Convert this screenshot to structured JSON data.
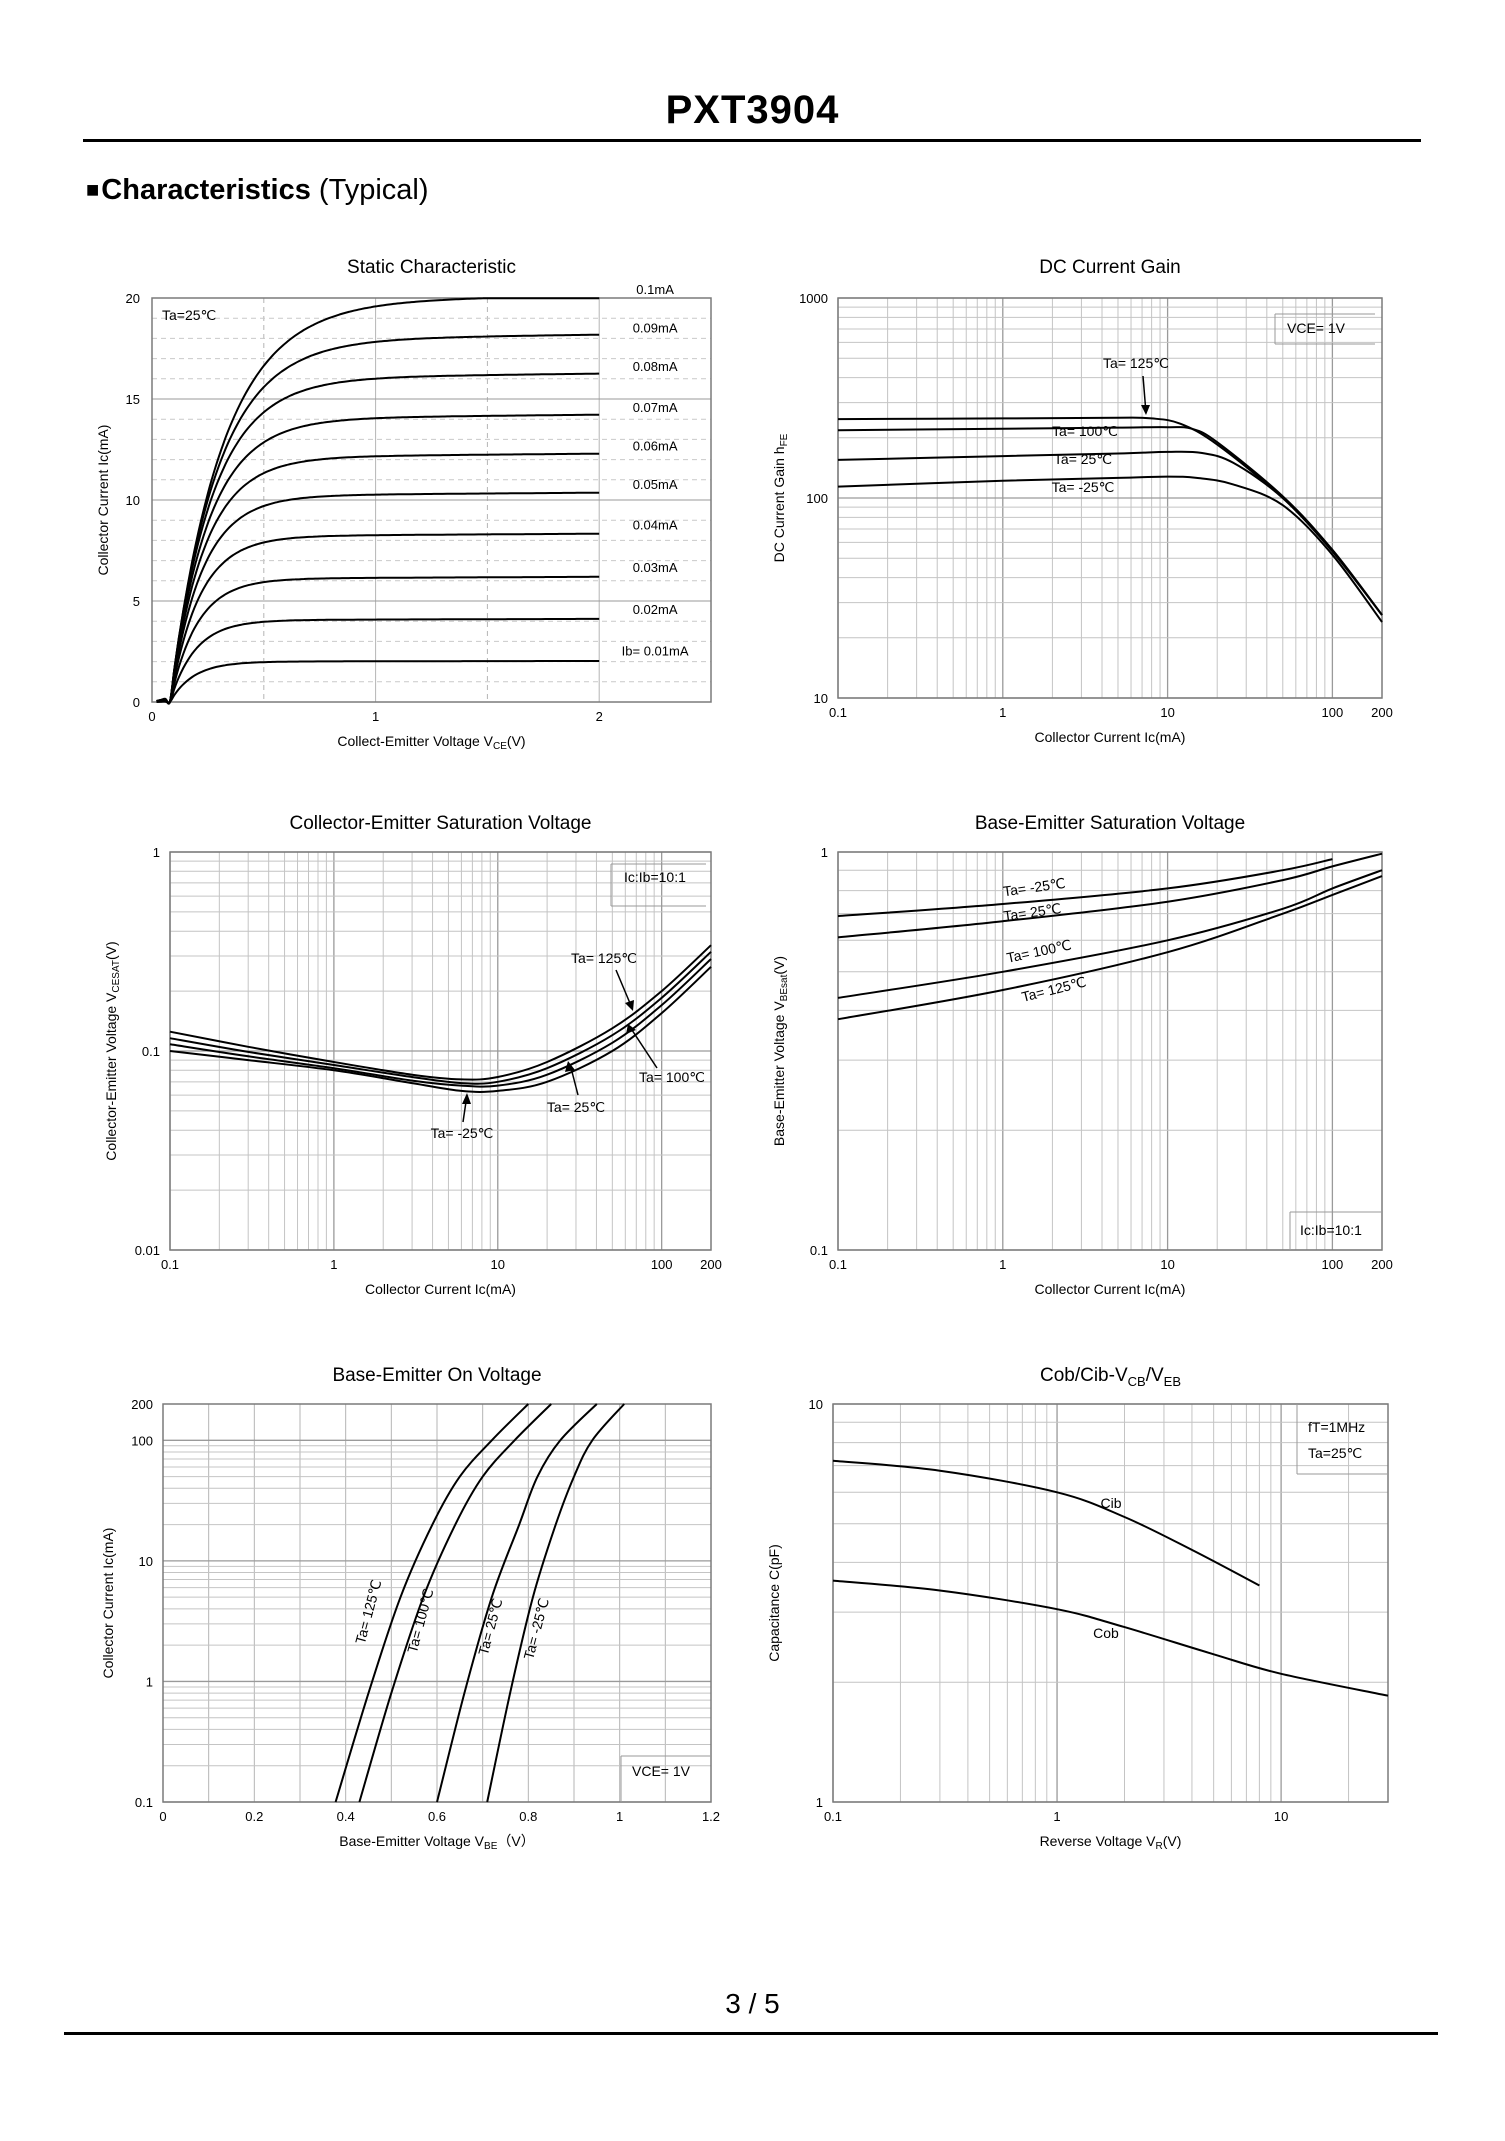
{
  "page": {
    "title": "PXT3904",
    "section_symbol": "■",
    "section_title": "Characteristics",
    "section_subtitle": " (Typical)",
    "page_number": "3 / 5"
  },
  "chart_data": [
    {
      "id": "static",
      "type": "line",
      "title": "Static Characteristic",
      "xlabel_main": "Collect-Emitter Voltage   V",
      "xlabel_sub": "CE",
      "xlabel_tail": "(V)",
      "ylabel": "Collector  Current   Ic(mA)",
      "x_scale": "linear",
      "xlim": [
        0,
        2.5
      ],
      "ylim": [
        0,
        20
      ],
      "xticks": [
        0,
        1,
        2
      ],
      "yticks": [
        0,
        5,
        10,
        15,
        20
      ],
      "annotations": [
        {
          "text": "Ta=25℃"
        }
      ],
      "series": [
        {
          "name": "Ib= 0.01mA",
          "isat": 2.0
        },
        {
          "name": "0.02mA",
          "isat": 4.05
        },
        {
          "name": "0.03mA",
          "isat": 6.1
        },
        {
          "name": "0.04mA",
          "isat": 8.2
        },
        {
          "name": "0.05mA",
          "isat": 10.2
        },
        {
          "name": "0.06mA",
          "isat": 12.1
        },
        {
          "name": "0.07mA",
          "isat": 14.0
        },
        {
          "name": "0.08mA",
          "isat": 16.0
        },
        {
          "name": "0.09mA",
          "isat": 17.9
        },
        {
          "name": "0.1mA",
          "isat": 19.8
        }
      ]
    },
    {
      "id": "hfe",
      "type": "line",
      "title": "DC Current Gain",
      "xlabel_main": "Collector Current   Ic(mA)",
      "ylabel_main": "DC Current Gain   h",
      "ylabel_sub": "FE",
      "x_scale": "log",
      "y_scale": "log",
      "xlim": [
        0.1,
        200
      ],
      "ylim": [
        10,
        1000
      ],
      "xticks": [
        {
          "v": 0.1,
          "t": "0.1"
        },
        {
          "v": 1,
          "t": "1"
        },
        {
          "v": 10,
          "t": "10"
        },
        {
          "v": 100,
          "t": "100"
        },
        {
          "v": 200,
          "t": "200"
        }
      ],
      "yticks": [
        {
          "v": 10,
          "t": "10"
        },
        {
          "v": 100,
          "t": "100"
        },
        {
          "v": 1000,
          "t": "1000"
        }
      ],
      "annotations": [
        {
          "text": "VCE= 1V"
        }
      ],
      "series": [
        {
          "name": "Ta= 125℃",
          "x": [
            0.1,
            1,
            5,
            8,
            12,
            20,
            50,
            100,
            200
          ],
          "y": [
            248,
            250,
            252,
            250,
            235,
            185,
            100,
            55,
            26
          ]
        },
        {
          "name": "Ta= 100℃",
          "x": [
            0.1,
            1,
            5,
            10,
            14,
            20,
            50,
            100,
            200
          ],
          "y": [
            218,
            222,
            225,
            226,
            222,
            190,
            102,
            55,
            26
          ]
        },
        {
          "name": "Ta= 25℃",
          "x": [
            0.1,
            1,
            5,
            10,
            16,
            25,
            50,
            100,
            200
          ],
          "y": [
            155,
            162,
            167,
            170,
            168,
            150,
            100,
            54,
            26
          ]
        },
        {
          "name": "Ta= -25℃",
          "x": [
            0.1,
            1,
            5,
            10,
            15,
            25,
            50,
            100,
            200
          ],
          "y": [
            114,
            122,
            126,
            128,
            126,
            117,
            92,
            52,
            24
          ]
        }
      ]
    },
    {
      "id": "vcesat",
      "type": "line",
      "title": "Collector-Emitter Saturation Voltage",
      "xlabel_main": "Collector Current   Ic(mA)",
      "ylabel_main": "Collector-Emitter Voltage   V",
      "ylabel_sub": "CESAT",
      "ylabel_tail": "(V)",
      "x_scale": "log",
      "y_scale": "log",
      "xlim": [
        0.1,
        200
      ],
      "ylim": [
        0.01,
        1
      ],
      "xticks": [
        {
          "v": 0.1,
          "t": "0.1"
        },
        {
          "v": 1,
          "t": "1"
        },
        {
          "v": 10,
          "t": "10"
        },
        {
          "v": 100,
          "t": "100"
        },
        {
          "v": 200,
          "t": "200"
        }
      ],
      "yticks": [
        {
          "v": 0.01,
          "t": "0.01"
        },
        {
          "v": 0.1,
          "t": "0.1"
        },
        {
          "v": 1,
          "t": "1"
        }
      ],
      "annotations": [
        {
          "text": "Ic:Ib=10:1"
        }
      ],
      "series": [
        {
          "name": "Ta= 125℃",
          "x": [
            0.1,
            0.3,
            1,
            3,
            6,
            10,
            20,
            50,
            100,
            200
          ],
          "y": [
            0.125,
            0.105,
            0.088,
            0.076,
            0.072,
            0.074,
            0.088,
            0.13,
            0.2,
            0.34
          ]
        },
        {
          "name": "Ta= 100℃",
          "x": [
            0.1,
            0.3,
            1,
            3,
            6,
            10,
            20,
            50,
            100,
            200
          ],
          "y": [
            0.116,
            0.099,
            0.085,
            0.074,
            0.069,
            0.07,
            0.082,
            0.12,
            0.185,
            0.315
          ]
        },
        {
          "name": "Ta= 25℃",
          "x": [
            0.1,
            0.3,
            1,
            3,
            6,
            10,
            20,
            50,
            100,
            200
          ],
          "y": [
            0.108,
            0.094,
            0.082,
            0.071,
            0.067,
            0.067,
            0.076,
            0.11,
            0.17,
            0.29
          ]
        },
        {
          "name": "Ta= -25℃",
          "x": [
            0.1,
            0.3,
            1,
            3,
            6,
            10,
            20,
            50,
            100,
            200
          ],
          "y": [
            0.1,
            0.09,
            0.08,
            0.069,
            0.063,
            0.063,
            0.07,
            0.1,
            0.155,
            0.265
          ]
        }
      ]
    },
    {
      "id": "vbesat",
      "type": "line",
      "title": "Base-Emitter Saturation Voltage",
      "xlabel_main": "Collector Current   Ic(mA)",
      "ylabel_main": "Base-Emitter Voltage   V",
      "ylabel_sub": "BEsat",
      "ylabel_tail": "(V)",
      "x_scale": "log",
      "y_scale": "log",
      "xlim": [
        0.1,
        200
      ],
      "ylim": [
        0.1,
        1
      ],
      "xticks": [
        {
          "v": 0.1,
          "t": "0.1"
        },
        {
          "v": 1,
          "t": "1"
        },
        {
          "v": 10,
          "t": "10"
        },
        {
          "v": 100,
          "t": "100"
        },
        {
          "v": 200,
          "t": "200"
        }
      ],
      "yticks": [
        {
          "v": 0.1,
          "t": "0.1"
        },
        {
          "v": 1,
          "t": "1"
        }
      ],
      "annotations": [
        {
          "text": "Ic:Ib=10:1"
        }
      ],
      "series": [
        {
          "name": "Ta= -25℃",
          "x": [
            0.1,
            1,
            10,
            50,
            100,
            200
          ],
          "y": [
            0.69,
            0.74,
            0.81,
            0.9,
            0.96,
            1.03
          ]
        },
        {
          "name": "Ta= 25℃",
          "x": [
            0.1,
            1,
            10,
            50,
            100,
            200
          ],
          "y": [
            0.61,
            0.67,
            0.75,
            0.85,
            0.92,
            0.99
          ]
        },
        {
          "name": "Ta= 100℃",
          "x": [
            0.1,
            1,
            10,
            50,
            100,
            200
          ],
          "y": [
            0.43,
            0.5,
            0.6,
            0.72,
            0.81,
            0.9
          ]
        },
        {
          "name": "Ta= 125℃",
          "x": [
            0.1,
            1,
            10,
            50,
            100,
            200
          ],
          "y": [
            0.38,
            0.45,
            0.56,
            0.7,
            0.78,
            0.87
          ]
        }
      ]
    },
    {
      "id": "vbeon",
      "type": "line",
      "title": "Base-Emitter On Voltage",
      "xlabel_main": "Base-Emitter Voltage   V",
      "xlabel_sub": "BE",
      "xlabel_tail": "（V）",
      "ylabel": "Collector Current   Ic(mA)",
      "x_scale": "linear",
      "y_scale": "log",
      "xlim": [
        0,
        1.2
      ],
      "ylim": [
        0.1,
        200
      ],
      "xticks": [
        {
          "v": 0,
          "t": "0"
        },
        {
          "v": 0.2,
          "t": "0.2"
        },
        {
          "v": 0.4,
          "t": "0.4"
        },
        {
          "v": 0.6,
          "t": "0.6"
        },
        {
          "v": 0.8,
          "t": "0.8"
        },
        {
          "v": 1,
          "t": "1"
        },
        {
          "v": 1.2,
          "t": "1.2"
        }
      ],
      "yticks": [
        {
          "v": 0.1,
          "t": "0.1"
        },
        {
          "v": 1,
          "t": "1"
        },
        {
          "v": 10,
          "t": "10"
        },
        {
          "v": 100,
          "t": "100"
        },
        {
          "v": 200,
          "t": "200"
        }
      ],
      "annotations": [
        {
          "text": "VCE= 1V"
        }
      ],
      "series": [
        {
          "name": "Ta= 125℃",
          "x": [
            0.378,
            0.45,
            0.52,
            0.59,
            0.65,
            0.72,
            0.8
          ],
          "y": [
            0.1,
            0.8,
            5,
            20,
            50,
            100,
            200
          ]
        },
        {
          "name": "Ta= 100℃",
          "x": [
            0.43,
            0.5,
            0.57,
            0.64,
            0.7,
            0.77,
            0.85
          ],
          "y": [
            0.1,
            0.8,
            5,
            20,
            50,
            100,
            200
          ]
        },
        {
          "name": "Ta= 25℃",
          "x": [
            0.6,
            0.66,
            0.72,
            0.78,
            0.82,
            0.87,
            0.95
          ],
          "y": [
            0.1,
            0.8,
            5,
            20,
            50,
            100,
            200
          ]
        },
        {
          "name": "Ta= -25℃",
          "x": [
            0.71,
            0.76,
            0.81,
            0.86,
            0.9,
            0.94,
            1.01
          ],
          "y": [
            0.1,
            0.8,
            5,
            20,
            50,
            100,
            200
          ]
        }
      ]
    },
    {
      "id": "cap",
      "type": "line",
      "title_main": "Cob/Cib-V",
      "title_sub1": "CB",
      "title_mid": "/V",
      "title_sub2": "EB",
      "xlabel_main": "Reverse Voltage   V",
      "xlabel_sub": "R",
      "xlabel_tail": "(V)",
      "ylabel": "Capacitance   C(pF)",
      "x_scale": "log",
      "y_scale": "log",
      "xlim": [
        0.1,
        30
      ],
      "ylim": [
        1,
        10
      ],
      "xticks": [
        {
          "v": 0.1,
          "t": "0.1"
        },
        {
          "v": 1,
          "t": "1"
        },
        {
          "v": 10,
          "t": "10"
        }
      ],
      "yticks": [
        {
          "v": 1,
          "t": "1"
        },
        {
          "v": 10,
          "t": "10"
        }
      ],
      "annotations": [
        {
          "text": "fT=1MHz"
        },
        {
          "text": "Ta=25℃"
        }
      ],
      "series": [
        {
          "name": "Cib",
          "x": [
            0.1,
            0.3,
            1,
            2,
            4,
            8
          ],
          "y": [
            7.2,
            6.8,
            6.0,
            5.2,
            4.3,
            3.5
          ]
        },
        {
          "name": "Cob",
          "x": [
            0.1,
            0.3,
            1,
            2,
            5,
            10,
            30
          ],
          "y": [
            3.6,
            3.4,
            3.05,
            2.75,
            2.35,
            2.1,
            1.85
          ]
        }
      ]
    }
  ]
}
